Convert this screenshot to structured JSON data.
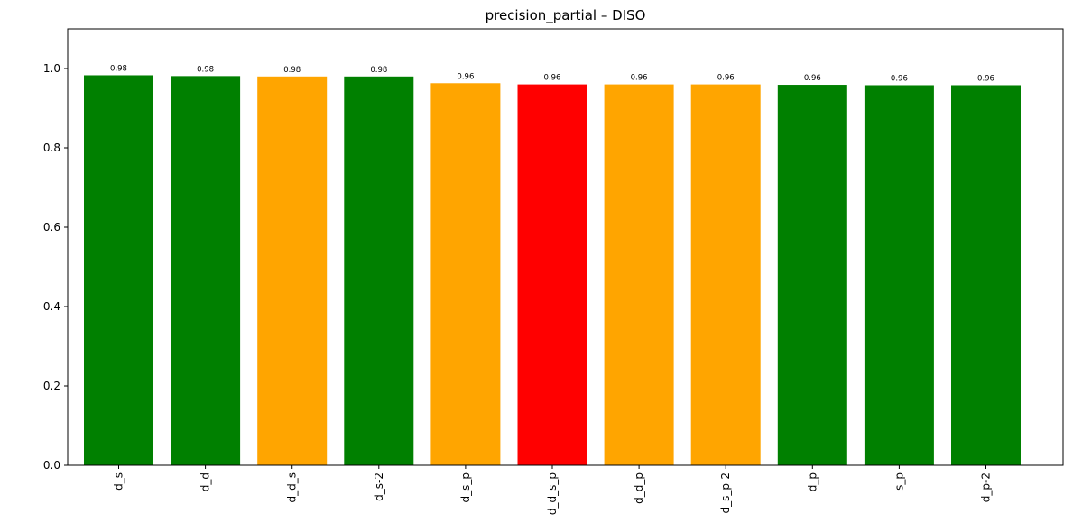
{
  "chart_data": {
    "type": "bar",
    "title": "precision_partial – DISO",
    "xlabel": "",
    "ylabel": "",
    "categories": [
      "d_s",
      "d_d",
      "d_d_s",
      "d_s-2",
      "d_s_p",
      "d_d_s_p",
      "d_d_p",
      "d_s_p-2",
      "d_p",
      "s_p",
      "d_p-2"
    ],
    "values": [
      0.983,
      0.981,
      0.98,
      0.98,
      0.963,
      0.96,
      0.96,
      0.96,
      0.959,
      0.958,
      0.958
    ],
    "data_labels": [
      "0.98",
      "0.98",
      "0.98",
      "0.98",
      "0.96",
      "0.96",
      "0.96",
      "0.96",
      "0.96",
      "0.96",
      "0.96"
    ],
    "bar_colors": [
      "#008000",
      "#008000",
      "#FFA500",
      "#008000",
      "#FFA500",
      "#FF0000",
      "#FFA500",
      "#FFA500",
      "#008000",
      "#008000",
      "#008000"
    ],
    "ylim": [
      0,
      1.1
    ],
    "yticks": [
      0.0,
      0.2,
      0.4,
      0.6,
      0.8,
      1.0
    ],
    "ytick_labels": [
      "0.0",
      "0.2",
      "0.4",
      "0.6",
      "0.8",
      "1.0"
    ],
    "xtick_rotation": "vertical",
    "grid": false,
    "legend": "none"
  }
}
